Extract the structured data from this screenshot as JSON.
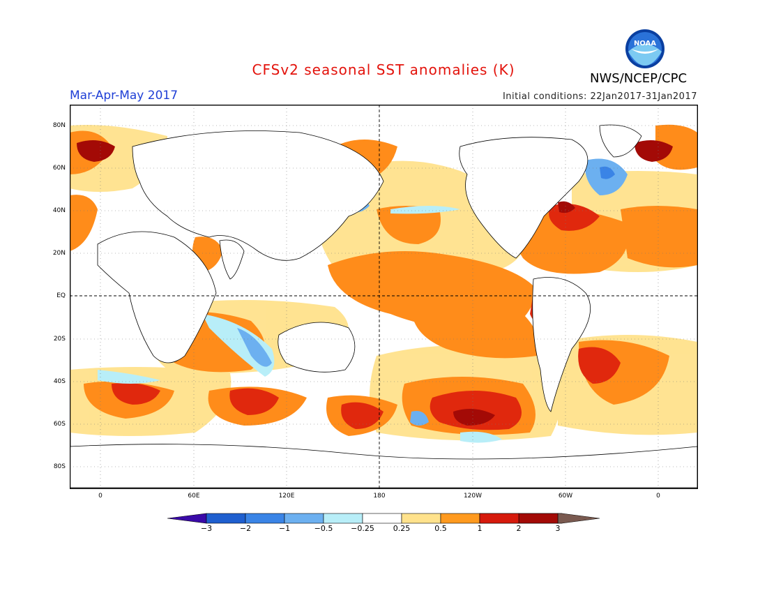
{
  "title": "CFSv2 seasonal SST anomalies (K)",
  "season": "Mar-Apr-May 2017",
  "initial_conditions": "Initial conditions: 22Jan2017-31Jan2017",
  "agency": "NWS/NCEP/CPC",
  "logo_text": "NOAA",
  "colors": {
    "title": "#e3120b",
    "season": "#1f3fd6"
  },
  "map": {
    "lat_labels": [
      "80N",
      "60N",
      "40N",
      "20N",
      "EQ",
      "20S",
      "40S",
      "60S",
      "80S"
    ],
    "lon_labels": [
      "0",
      "60E",
      "120E",
      "180",
      "120W",
      "60W",
      "0"
    ]
  },
  "colorbar": {
    "labels": [
      "−3",
      "−2",
      "−1",
      "−0.5",
      "−0.25",
      "0.25",
      "0.5",
      "1",
      "2",
      "3"
    ],
    "colors": [
      "#3a0aa8",
      "#1f5fcf",
      "#3a84e6",
      "#6cb0f0",
      "#b8eef8",
      "#ffffff",
      "#ffe28c",
      "#ff9a1f",
      "#ff5a0a",
      "#d61a0c",
      "#a30a06",
      "#7a5a50"
    ]
  }
}
